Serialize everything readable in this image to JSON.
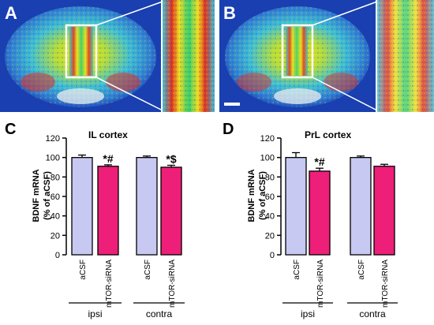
{
  "panels": {
    "A": "A",
    "B": "B",
    "C": "C",
    "D": "D"
  },
  "colors": {
    "acsf": "#c7c9f2",
    "mtor": "#ee1f78",
    "axis": "#000000"
  },
  "chart_data": [
    {
      "type": "bar",
      "title": "IL cortex",
      "ylabel": [
        "BDNF mRNA",
        "(% of aCSF)"
      ],
      "ylim": [
        0,
        120
      ],
      "yticks": [
        0,
        20,
        40,
        60,
        80,
        100,
        120
      ],
      "categories": [
        "aCSF",
        "mTOR-siRNA",
        "aCSF",
        "mTOR-siRNA"
      ],
      "groups": [
        "ipsi",
        "contra"
      ],
      "values": [
        100,
        91,
        100,
        90
      ],
      "errors": [
        2.5,
        1.5,
        1.5,
        2
      ],
      "annotations": [
        "",
        "*#",
        "",
        "*$"
      ],
      "bar_colors": [
        "acsf",
        "mtor",
        "acsf",
        "mtor"
      ]
    },
    {
      "type": "bar",
      "title": "PrL cortex",
      "ylabel": [
        "BDNF mRNA",
        "(% of aCSF)"
      ],
      "ylim": [
        0,
        120
      ],
      "yticks": [
        0,
        20,
        40,
        60,
        80,
        100,
        120
      ],
      "categories": [
        "aCSF",
        "mTOR-siRNA",
        "aCSF",
        "mTOR-siRNA"
      ],
      "groups": [
        "ipsi",
        "contra"
      ],
      "values": [
        100,
        86,
        100,
        91
      ],
      "errors": [
        5,
        3,
        1.5,
        2
      ],
      "annotations": [
        "",
        "*#",
        "",
        ""
      ],
      "bar_colors": [
        "acsf",
        "mtor",
        "acsf",
        "mtor"
      ]
    }
  ]
}
